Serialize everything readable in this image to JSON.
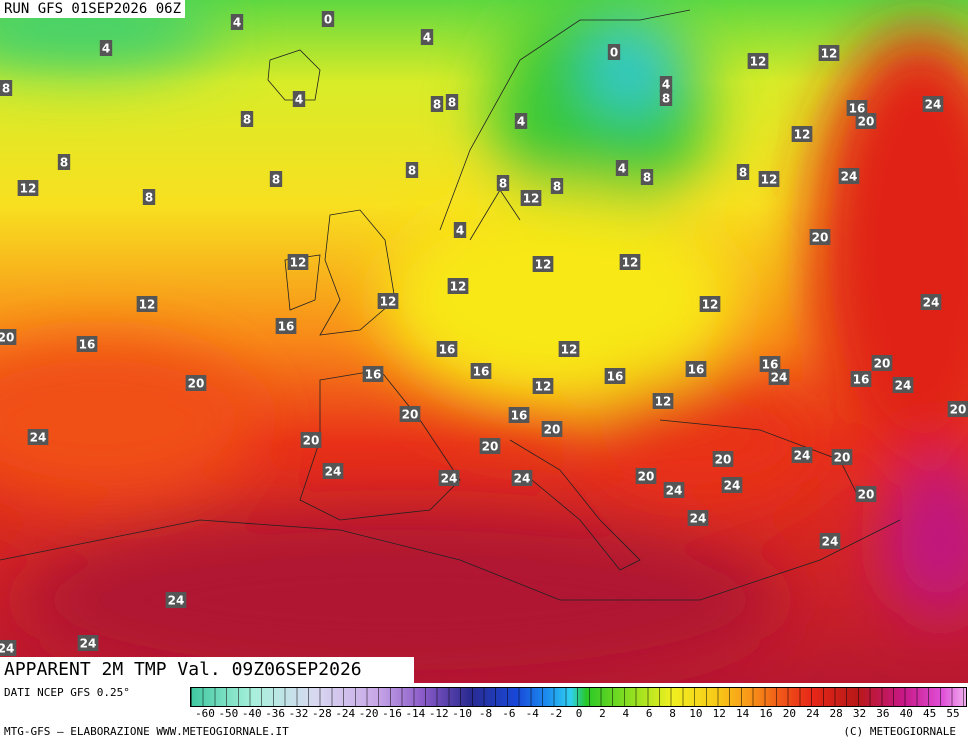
{
  "header": {
    "run": "RUN GFS 01SEP2026 06Z",
    "title": "APPARENT 2M TMP Val. 09Z06SEP2026"
  },
  "map": {
    "labels": [
      0,
      4,
      4,
      4,
      0,
      12,
      12,
      4,
      8,
      8,
      4,
      8,
      8,
      16,
      20,
      24,
      8,
      4,
      12,
      8,
      8,
      4,
      8,
      8,
      12,
      24,
      12,
      8,
      8,
      8,
      12,
      8,
      4,
      20,
      12,
      12,
      12,
      12,
      12,
      12,
      12,
      24,
      16,
      20,
      16,
      16,
      12,
      16,
      24,
      20,
      16,
      16,
      16,
      16,
      12,
      20,
      16,
      24,
      20,
      20,
      12,
      16,
      24,
      20,
      20,
      20,
      24,
      20,
      20,
      24,
      24,
      24,
      20,
      24,
      24,
      20,
      24,
      24,
      24,
      24,
      24
    ]
  },
  "colorbar": {
    "source": "DATI NCEP GFS 0.25°",
    "labels": [
      -60,
      -50,
      -40,
      -36,
      -32,
      -28,
      -24,
      -20,
      -16,
      -14,
      -12,
      -10,
      -8,
      -6,
      -4,
      -2,
      0,
      2,
      4,
      6,
      8,
      10,
      12,
      14,
      16,
      20,
      24,
      28,
      32,
      36,
      40,
      45,
      55
    ]
  },
  "footer": {
    "left": "MTG-GFS — ELABORAZIONE WWW.METEOGIORNALE.IT",
    "right": "(C) METEOGIORNALE"
  }
}
